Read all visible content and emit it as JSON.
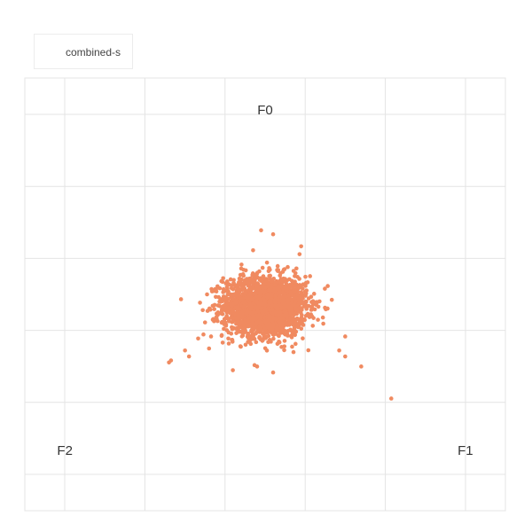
{
  "chart_data": {
    "type": "scatter",
    "title": "",
    "legend": {
      "placement": "top-left",
      "entries": [
        "combined-s"
      ]
    },
    "series": [
      {
        "name": "combined-s",
        "color": "#f08a60",
        "count": 2000,
        "center": [
          0.0,
          -0.49
        ],
        "spread": [
          0.052,
          0.038
        ],
        "outliers": [
          [
            -0.24,
            -0.63
          ],
          [
            -0.235,
            -0.625
          ],
          [
            -0.19,
            -0.615
          ],
          [
            -0.14,
            -0.595
          ],
          [
            -0.135,
            -0.565
          ],
          [
            -0.15,
            -0.53
          ],
          [
            -0.145,
            -0.46
          ],
          [
            -0.1,
            -0.475
          ],
          [
            -0.09,
            -0.435
          ],
          [
            -0.03,
            -0.35
          ],
          [
            -0.01,
            -0.3
          ],
          [
            0.02,
            -0.31
          ],
          [
            0.09,
            -0.34
          ],
          [
            0.12,
            -0.485
          ],
          [
            0.2,
            -0.565
          ],
          [
            0.185,
            -0.6
          ],
          [
            0.2,
            -0.615
          ],
          [
            0.24,
            -0.64
          ],
          [
            0.315,
            -0.72
          ],
          [
            0.02,
            -0.655
          ],
          [
            -0.02,
            -0.64
          ],
          [
            -0.2,
            -0.6
          ]
        ]
      }
    ],
    "vertices": [
      {
        "label": "F0",
        "x": 0.0,
        "y": 0.0
      },
      {
        "label": "F1",
        "x": 0.5,
        "y": -0.85
      },
      {
        "label": "F2",
        "x": -0.5,
        "y": -0.85
      }
    ],
    "xlim": [
      -0.6,
      0.6
    ],
    "ylim": [
      -1.0,
      0.08
    ],
    "grid": true
  }
}
